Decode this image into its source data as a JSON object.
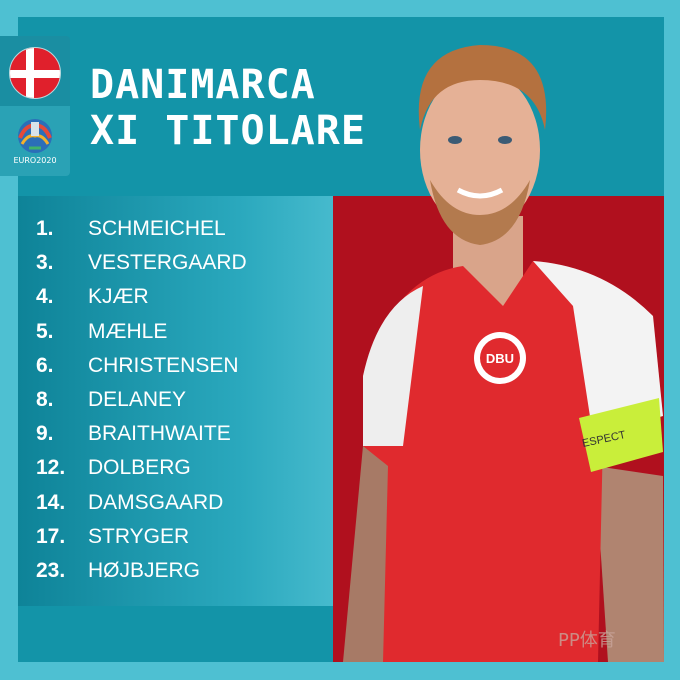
{
  "header": {
    "line1": "DANIMARCA",
    "line2": "XI TITOLARE"
  },
  "badge": {
    "flag": "denmark-flag",
    "logo_text": "EURO2020"
  },
  "lineup": [
    {
      "number": "1.",
      "name": "SCHMEICHEL"
    },
    {
      "number": "3.",
      "name": "VESTERGAARD"
    },
    {
      "number": "4.",
      "name": "KJÆR"
    },
    {
      "number": "5.",
      "name": "MÆHLE"
    },
    {
      "number": "6.",
      "name": "CHRISTENSEN"
    },
    {
      "number": "8.",
      "name": "DELANEY"
    },
    {
      "number": "9.",
      "name": "BRAITHWAITE"
    },
    {
      "number": "12.",
      "name": "DOLBERG"
    },
    {
      "number": "14.",
      "name": "DAMSGAARD"
    },
    {
      "number": "17.",
      "name": "STRYGER"
    },
    {
      "number": "23.",
      "name": "HØJBJERG"
    }
  ],
  "photo": {
    "armband_text": "ESPECT",
    "crest_text": "DBU",
    "watermark": "PP体育"
  },
  "colors": {
    "outer": "#4ec0d2",
    "panel": "#1394a8",
    "shirt_red": "#e02a2e",
    "flag_red": "#e0202c"
  }
}
